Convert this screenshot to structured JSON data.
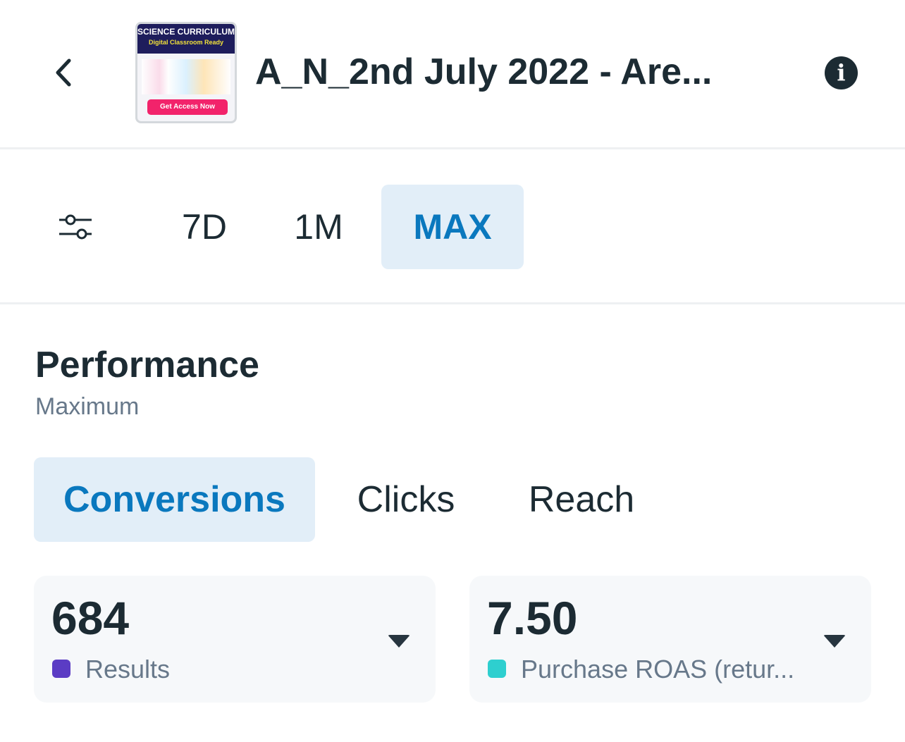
{
  "header": {
    "title": "A_N_2nd July 2022 - Are...",
    "thumbnail": {
      "headline": "SCIENCE CURRICULUM",
      "subline": "Digital Classroom Ready",
      "cta": "Get Access Now"
    },
    "info_icon": "i"
  },
  "range": {
    "options": [
      "7D",
      "1M",
      "MAX"
    ],
    "selected": "MAX"
  },
  "performance": {
    "title": "Performance",
    "subtitle": "Maximum"
  },
  "tabs": {
    "items": [
      "Conversions",
      "Clicks",
      "Reach"
    ],
    "selected": "Conversions"
  },
  "metrics": [
    {
      "value": "684",
      "label": "Results",
      "color": "#5b3cc4"
    },
    {
      "value": "7.50",
      "label": "Purchase ROAS (retur...",
      "color": "#2ecfcf"
    }
  ],
  "colors": {
    "accent": "#0a78be",
    "active_bg": "#e2eef8"
  }
}
